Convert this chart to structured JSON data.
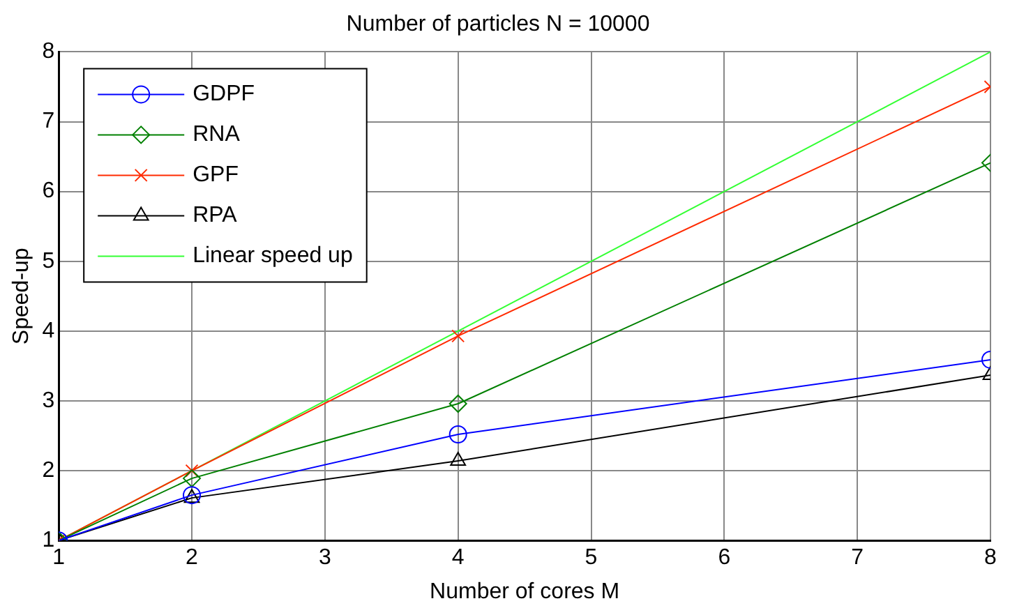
{
  "chart_data": {
    "type": "line",
    "title": "Number of particles N = 10000",
    "xlabel": "Number of cores M",
    "ylabel": "Speed-up",
    "x": [
      1,
      2,
      4,
      8
    ],
    "series": [
      {
        "name": "GDPF",
        "color": "#0000ff",
        "marker": "circle",
        "values": [
          1,
          1.65,
          2.52,
          3.59
        ]
      },
      {
        "name": "RNA",
        "color": "#008000",
        "marker": "diamond",
        "values": [
          1,
          1.89,
          2.96,
          6.41
        ]
      },
      {
        "name": "GPF",
        "color": "#ff2a00",
        "marker": "cross",
        "values": [
          1,
          2.0,
          3.93,
          7.5
        ]
      },
      {
        "name": "RPA",
        "color": "#000000",
        "marker": "triangle",
        "values": [
          1,
          1.61,
          2.14,
          3.37
        ]
      },
      {
        "name": "Linear speed up",
        "color": "#33ff33",
        "marker": "none",
        "values": [
          1,
          2,
          4,
          8
        ]
      }
    ],
    "xlim": [
      1,
      8
    ],
    "xticks": [
      1,
      2,
      3,
      4,
      5,
      6,
      7,
      8
    ],
    "ylim": [
      1,
      8
    ],
    "yticks": [
      1,
      2,
      3,
      4,
      5,
      6,
      7,
      8
    ],
    "grid": true,
    "legend": "top left",
    "line_style": "solid"
  }
}
